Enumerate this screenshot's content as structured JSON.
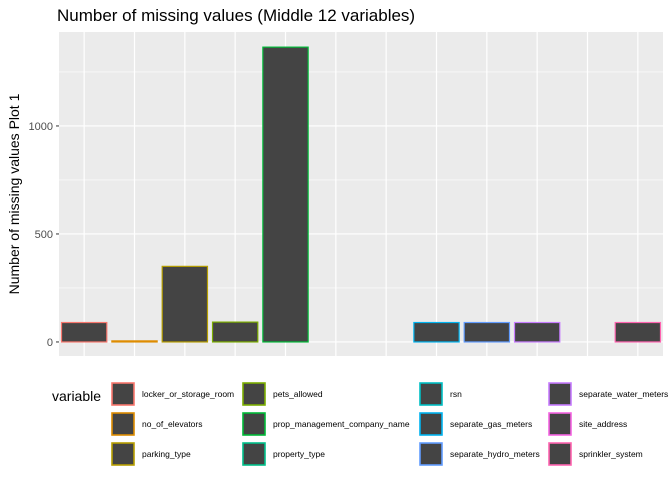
{
  "chart_data": {
    "type": "bar",
    "title": "Number of missing values (Middle 12 variables)",
    "xlabel": "",
    "ylabel": "Number of missing values Plot 1",
    "ylim": [
      0,
      1400
    ],
    "yticks": [
      0,
      500,
      1000
    ],
    "grid": true,
    "legend_title": "variable",
    "legend_placement": "bottom",
    "bar_fill": "#444444",
    "panel_background": "#ebebeb",
    "gridline_color": "#ffffff",
    "categories": [
      "locker_or_storage_room",
      "no_of_elevators",
      "parking_type",
      "pets_allowed",
      "prop_management_company_name",
      "property_type",
      "rsn",
      "separate_gas_meters",
      "separate_hydro_meters",
      "separate_water_meters",
      "site_address",
      "sprinkler_system"
    ],
    "values": [
      90,
      5,
      350,
      92,
      1365,
      0,
      0,
      90,
      90,
      90,
      0,
      90
    ],
    "colors": [
      "#F8766D",
      "#DE8C00",
      "#B79F00",
      "#7CAE00",
      "#00BA38",
      "#00C08B",
      "#00BFC4",
      "#00B4F0",
      "#619CFF",
      "#C77CFF",
      "#F564E3",
      "#FF64B0"
    ]
  }
}
